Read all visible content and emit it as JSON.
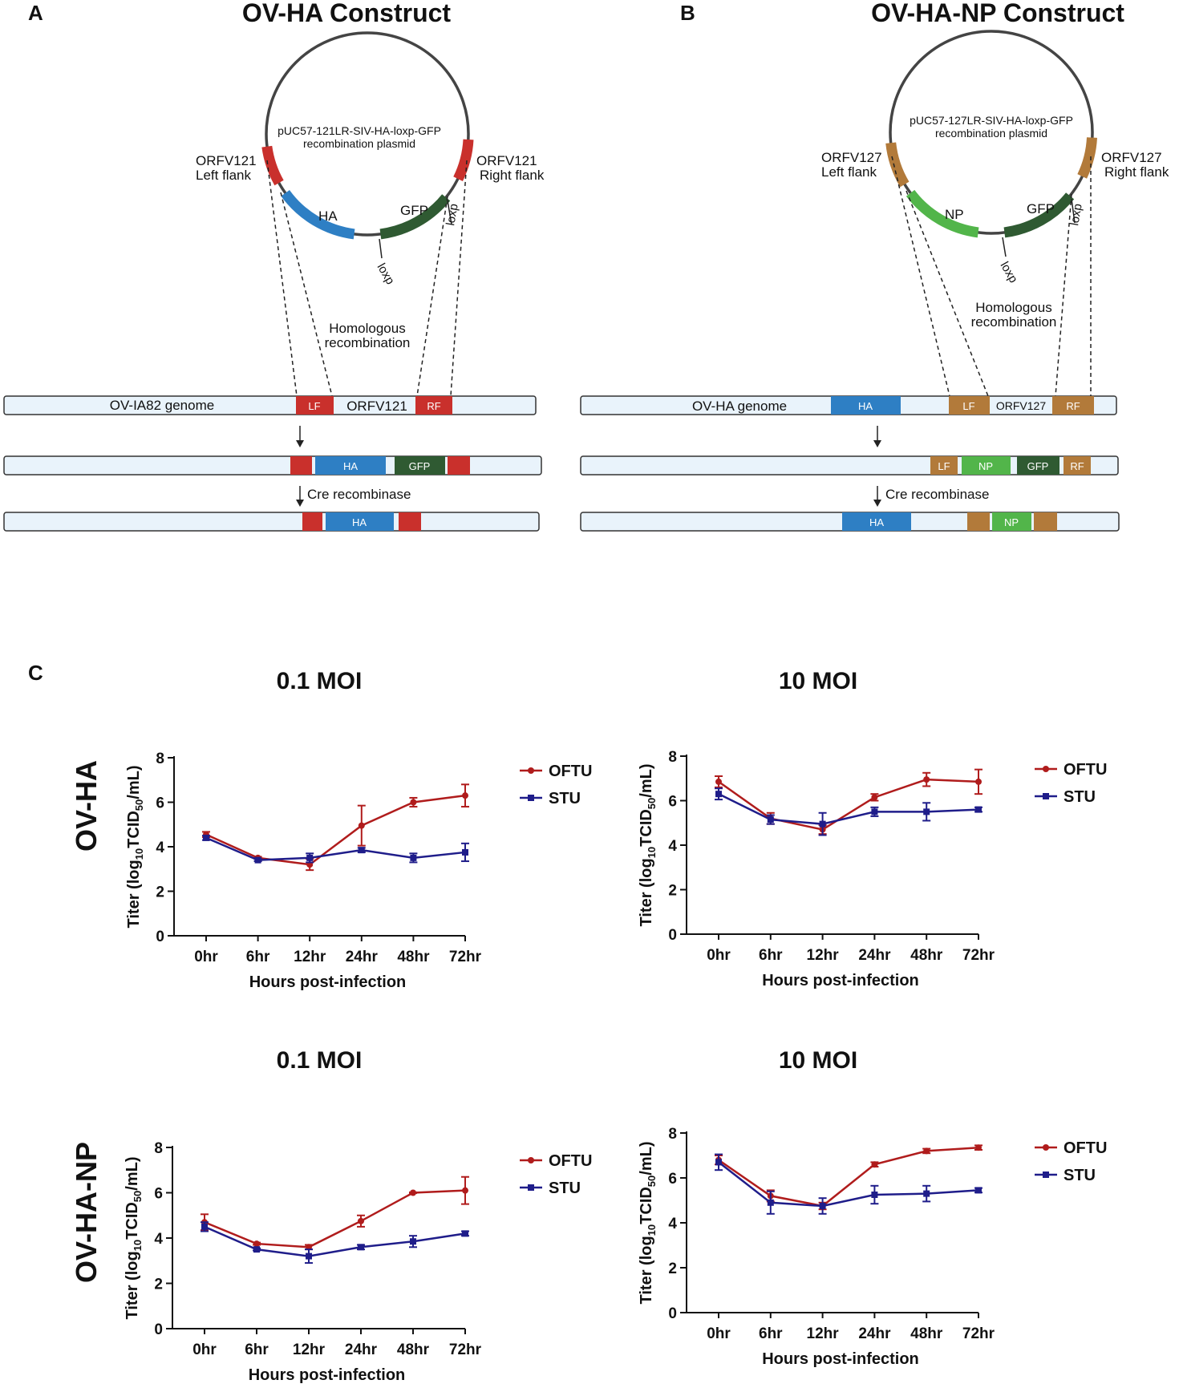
{
  "colors": {
    "red": "#c9302c",
    "blue": "#2e7fc4",
    "dkgreen": "#2f5a32",
    "ltgreen": "#52b54a",
    "brown": "#b27a3a",
    "genome": "#e9f3fb",
    "ofth": "#b01c1c",
    "stu": "#1f1d8a"
  },
  "panelA": {
    "letter": "A",
    "title": "OV-HA Construct",
    "plasmid_line1": "pUC57-121LR-SIV-HA-loxp-GFP",
    "plasmid_line2": "recombination plasmid",
    "left_flank_1": "ORFV121",
    "left_flank_2": "Left flank",
    "right_flank_1": "ORFV121",
    "right_flank_2": "Right flank",
    "ha": "HA",
    "gfp": "GFP",
    "loxp1": "loxp",
    "loxp2": "loxp",
    "homologous_1": "Homologous",
    "homologous_2": "recombination",
    "genome_label": "OV-IA82 genome",
    "lf": "LF",
    "orfv": "ORFV121",
    "rf": "RF",
    "row2_ha": "HA",
    "row2_gfp": "GFP",
    "cre": "Cre recombinase",
    "row3_ha": "HA"
  },
  "panelB": {
    "letter": "B",
    "title": "OV-HA-NP Construct",
    "plasmid_line1": "pUC57-127LR-SIV-HA-loxp-GFP",
    "plasmid_line2": "recombination plasmid",
    "left_flank_1": "ORFV127",
    "left_flank_2": "Left flank",
    "right_flank_1": "ORFV127",
    "right_flank_2": "Right flank",
    "np": "NP",
    "gfp": "GFP",
    "loxp1": "loxp",
    "loxp2": "loxp",
    "homologous_1": "Homologous",
    "homologous_2": "recombination",
    "genome_label": "OV-HA genome",
    "ha": "HA",
    "lf": "LF",
    "orfv": "ORFV127",
    "rf": "RF",
    "row2_lf": "LF",
    "row2_np": "NP",
    "row2_gfp": "GFP",
    "row2_rf": "RF",
    "cre": "Cre recombinase",
    "row3_ha": "HA",
    "row3_np": "NP"
  },
  "panelC": {
    "letter": "C",
    "row1_label": "OV-HA",
    "row2_label": "OV-HA-NP"
  },
  "chart_data": [
    {
      "type": "line",
      "title": "0.1 MOI",
      "xlabel": "Hours post-infection",
      "ylabel": "Titer (log10TCID50/mL)",
      "ylim": [
        0,
        8
      ],
      "yticks": [
        0,
        2,
        4,
        6,
        8
      ],
      "categories": [
        "0hr",
        "6hr",
        "12hr",
        "24hr",
        "48hr",
        "72hr"
      ],
      "series": [
        {
          "name": "OFTU",
          "values": [
            4.55,
            3.5,
            3.2,
            4.95,
            6.0,
            6.3
          ],
          "errors": [
            0.12,
            0.05,
            0.25,
            0.9,
            0.2,
            0.5
          ]
        },
        {
          "name": "STU",
          "values": [
            4.4,
            3.4,
            3.5,
            3.85,
            3.5,
            3.75
          ],
          "errors": [
            0.1,
            0.05,
            0.2,
            0.1,
            0.2,
            0.4
          ]
        }
      ]
    },
    {
      "type": "line",
      "title": "10 MOI",
      "xlabel": "Hours post-infection",
      "ylabel": "Titer (log10TCID50/mL)",
      "ylim": [
        0,
        8
      ],
      "yticks": [
        0,
        2,
        4,
        6,
        8
      ],
      "categories": [
        "0hr",
        "6hr",
        "12hr",
        "24hr",
        "48hr",
        "72hr"
      ],
      "series": [
        {
          "name": "OFTU",
          "values": [
            6.85,
            5.2,
            4.7,
            6.15,
            6.95,
            6.85
          ],
          "errors": [
            0.25,
            0.25,
            0.2,
            0.15,
            0.3,
            0.55
          ]
        },
        {
          "name": "STU",
          "values": [
            6.3,
            5.15,
            4.95,
            5.5,
            5.5,
            5.6
          ],
          "errors": [
            0.25,
            0.2,
            0.5,
            0.2,
            0.4,
            0.1
          ]
        }
      ]
    },
    {
      "type": "line",
      "title": "0.1 MOI",
      "xlabel": "Hours post-infection",
      "ylabel": "Titer (log10TCID50/mL)",
      "ylim": [
        0,
        8
      ],
      "yticks": [
        0,
        2,
        4,
        6,
        8
      ],
      "categories": [
        "0hr",
        "6hr",
        "12hr",
        "24hr",
        "48hr",
        "72hr"
      ],
      "series": [
        {
          "name": "OFTU",
          "values": [
            4.7,
            3.75,
            3.6,
            4.75,
            6.0,
            6.1
          ],
          "errors": [
            0.35,
            0.05,
            0.1,
            0.25,
            0.02,
            0.6
          ]
        },
        {
          "name": "STU",
          "values": [
            4.5,
            3.5,
            3.2,
            3.6,
            3.85,
            4.2
          ],
          "errors": [
            0.2,
            0.05,
            0.3,
            0.1,
            0.25,
            0.1
          ]
        }
      ]
    },
    {
      "type": "line",
      "title": "10 MOI",
      "xlabel": "Hours post-infection",
      "ylabel": "Titer (log10TCID50/mL)",
      "ylim": [
        0,
        8
      ],
      "yticks": [
        0,
        2,
        4,
        6,
        8
      ],
      "categories": [
        "0hr",
        "6hr",
        "12hr",
        "24hr",
        "48hr",
        "72hr"
      ],
      "series": [
        {
          "name": "OFTU",
          "values": [
            6.8,
            5.2,
            4.75,
            6.6,
            7.2,
            7.35
          ],
          "errors": [
            0.2,
            0.25,
            0.15,
            0.1,
            0.1,
            0.1
          ]
        },
        {
          "name": "STU",
          "values": [
            6.7,
            4.9,
            4.75,
            5.25,
            5.3,
            5.45
          ],
          "errors": [
            0.35,
            0.5,
            0.35,
            0.4,
            0.35,
            0.1
          ]
        }
      ]
    }
  ]
}
